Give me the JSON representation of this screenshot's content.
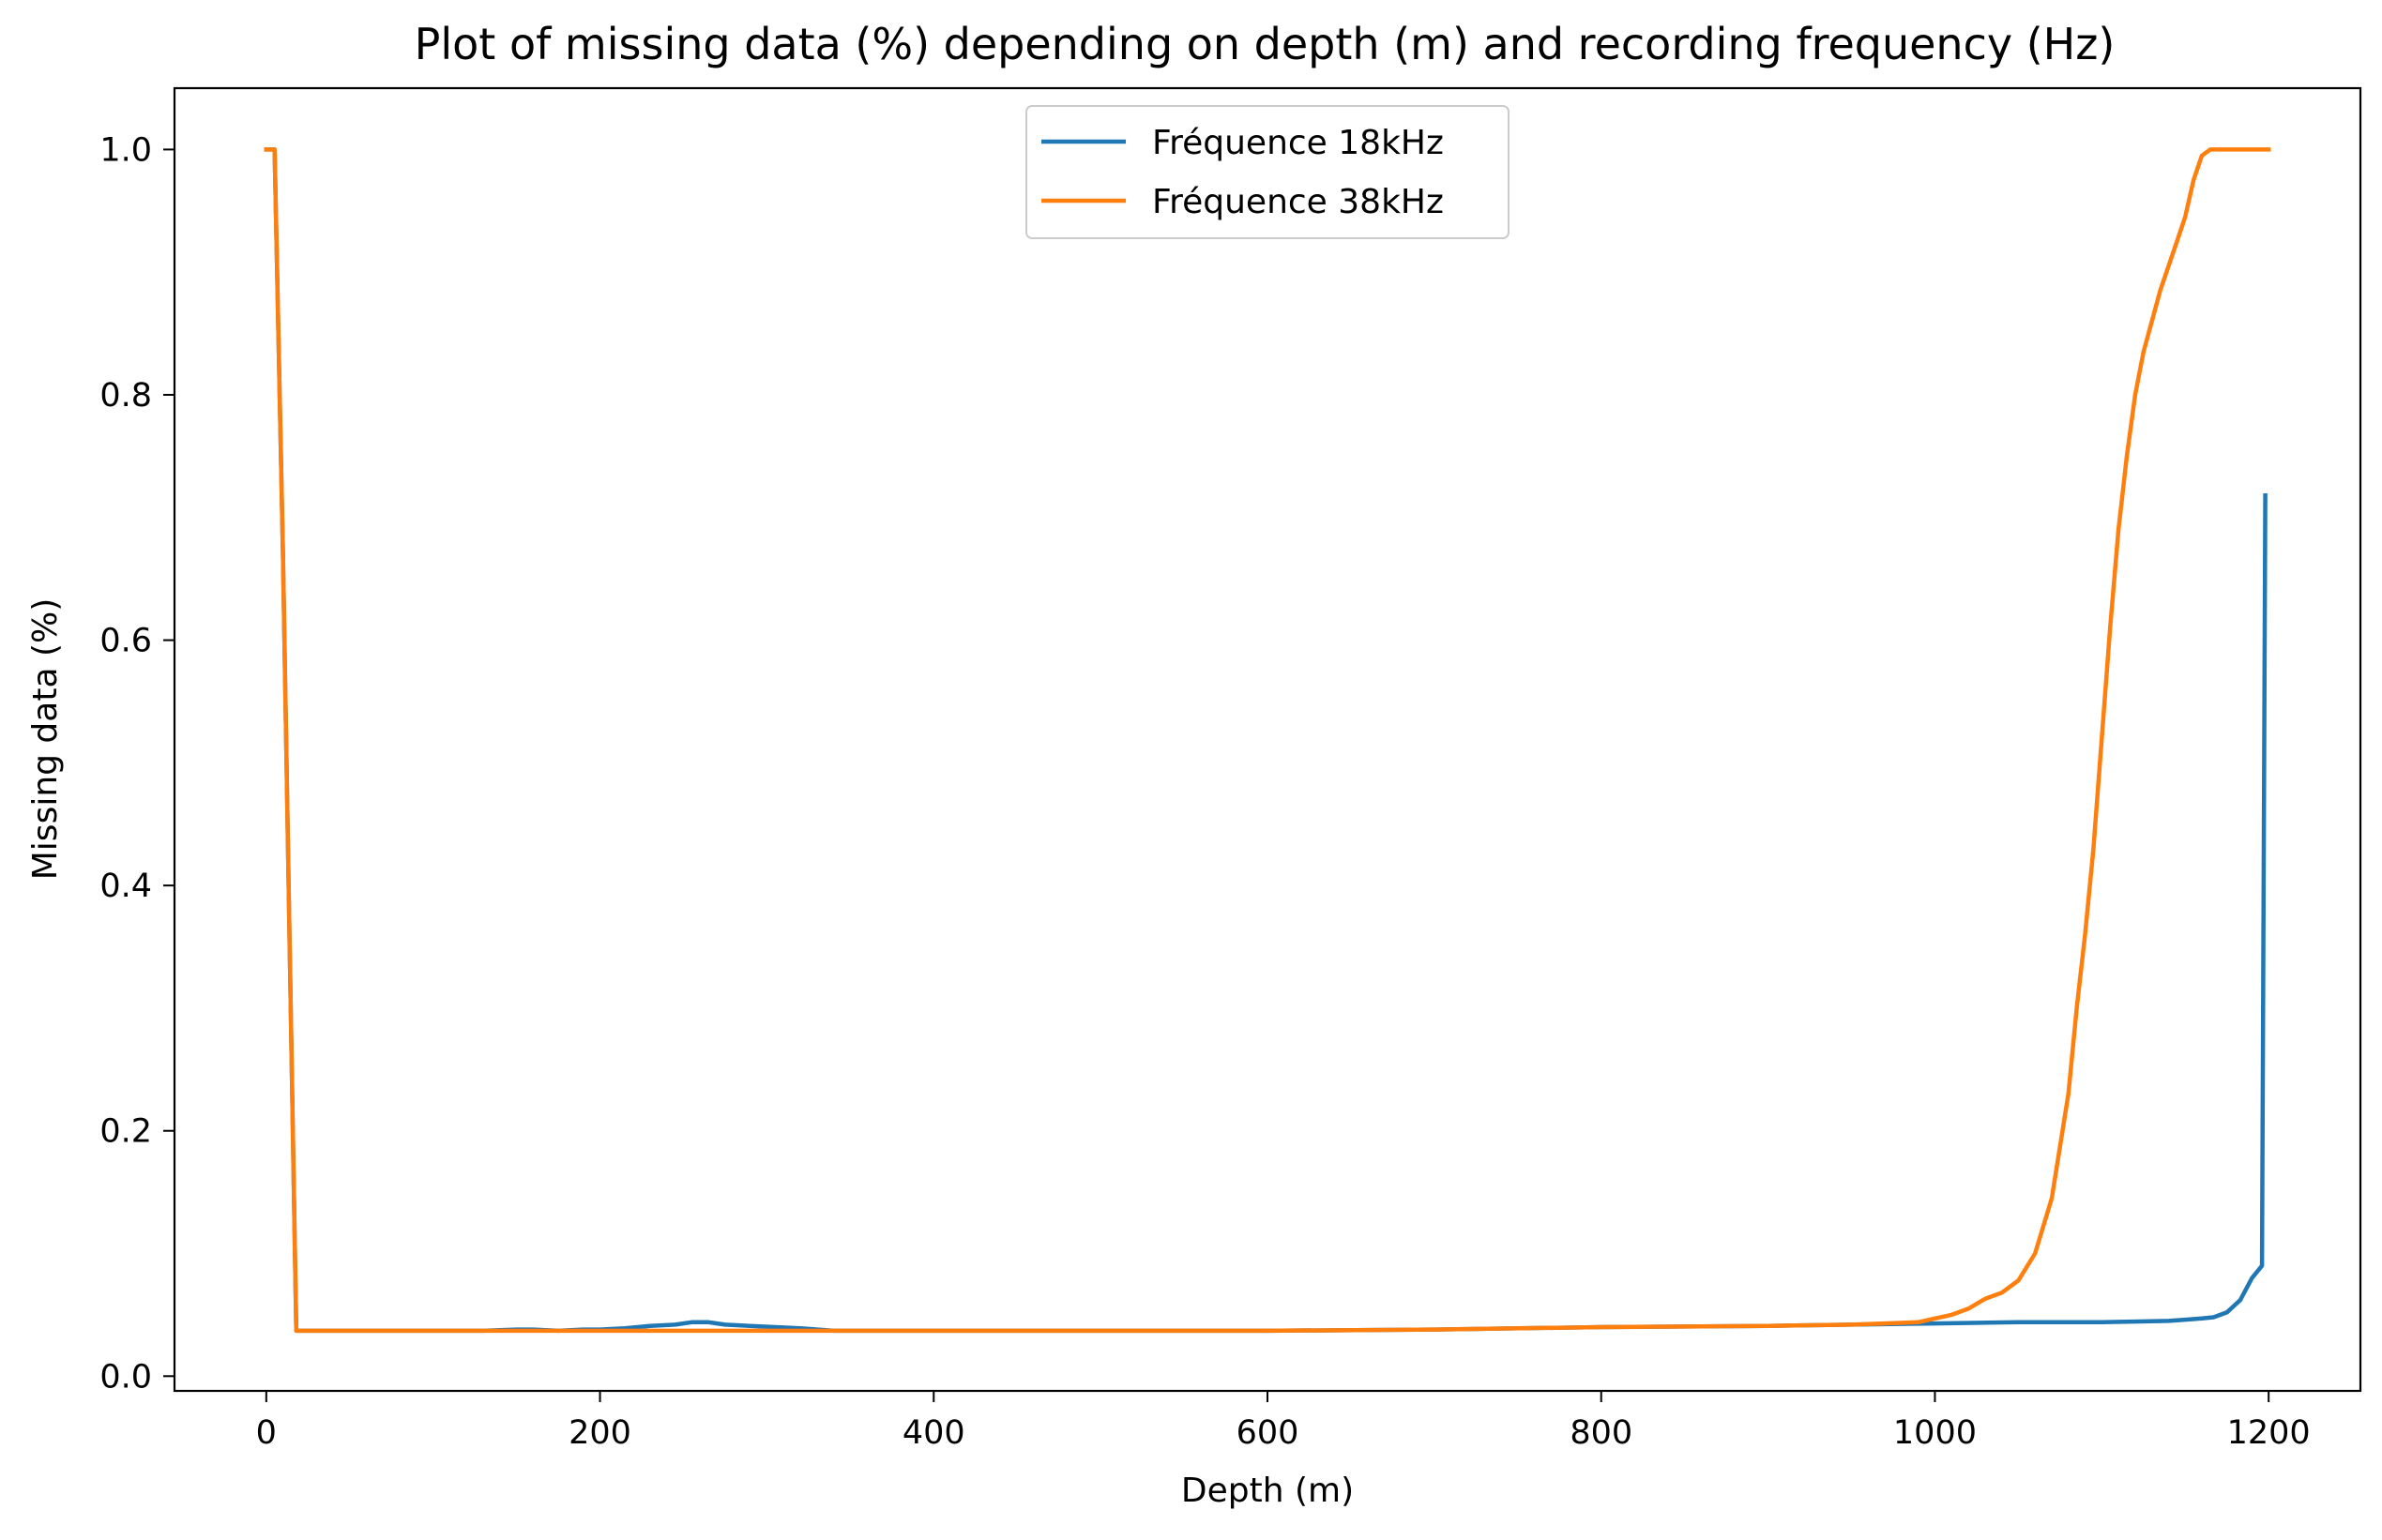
{
  "chart_data": {
    "type": "line",
    "title": "Plot of missing data (%) depending on depth (m) and recording frequency (Hz)",
    "xlabel": "Depth (m)",
    "ylabel": "Missing data (%)",
    "xlim": [
      -55,
      1255
    ],
    "ylim": [
      -0.012,
      1.05
    ],
    "xticks": [
      0,
      200,
      400,
      600,
      800,
      1000,
      1200
    ],
    "xtick_labels": [
      "0",
      "200",
      "400",
      "600",
      "800",
      "1000",
      "1200"
    ],
    "yticks": [
      0.0,
      0.2,
      0.4,
      0.6,
      0.8,
      1.0
    ],
    "ytick_labels": [
      "0.0",
      "0.2",
      "0.4",
      "0.6",
      "0.8",
      "1.0"
    ],
    "grid": false,
    "legend_position": "upper-center",
    "series": [
      {
        "name": "Fréquence 18kHz",
        "color": "#1f77b4",
        "x": [
          0,
          5,
          10,
          18,
          30,
          60,
          100,
          130,
          150,
          160,
          175,
          190,
          200,
          215,
          230,
          245,
          255,
          265,
          275,
          290,
          305,
          320,
          340,
          360,
          380,
          400,
          500,
          600,
          700,
          800,
          900,
          1000,
          1050,
          1100,
          1140,
          1150,
          1160,
          1167,
          1175,
          1183,
          1190,
          1196,
          1198
        ],
        "values": [
          1.0,
          1.0,
          0.67,
          0.037,
          0.037,
          0.037,
          0.037,
          0.037,
          0.038,
          0.038,
          0.037,
          0.038,
          0.038,
          0.039,
          0.041,
          0.042,
          0.044,
          0.044,
          0.042,
          0.041,
          0.04,
          0.039,
          0.037,
          0.037,
          0.037,
          0.037,
          0.037,
          0.037,
          0.038,
          0.04,
          0.041,
          0.043,
          0.044,
          0.044,
          0.045,
          0.046,
          0.047,
          0.048,
          0.052,
          0.062,
          0.08,
          0.09,
          0.718
        ]
      },
      {
        "name": "Fréquence 38kHz",
        "color": "#ff7f0e",
        "x": [
          0,
          5,
          10,
          18,
          30,
          100,
          200,
          300,
          400,
          500,
          600,
          700,
          800,
          900,
          950,
          990,
          1000,
          1010,
          1020,
          1030,
          1040,
          1050,
          1060,
          1070,
          1080,
          1085,
          1090,
          1095,
          1100,
          1105,
          1110,
          1115,
          1120,
          1125,
          1130,
          1135,
          1140,
          1145,
          1150,
          1155,
          1160,
          1165,
          1170,
          1200
        ],
        "values": [
          1.0,
          1.0,
          0.67,
          0.037,
          0.037,
          0.037,
          0.037,
          0.037,
          0.037,
          0.037,
          0.037,
          0.038,
          0.04,
          0.041,
          0.042,
          0.044,
          0.047,
          0.05,
          0.055,
          0.063,
          0.068,
          0.078,
          0.1,
          0.145,
          0.23,
          0.3,
          0.36,
          0.43,
          0.52,
          0.61,
          0.69,
          0.75,
          0.8,
          0.835,
          0.86,
          0.885,
          0.905,
          0.925,
          0.945,
          0.975,
          0.995,
          1.0,
          1.0,
          1.0
        ]
      }
    ]
  }
}
